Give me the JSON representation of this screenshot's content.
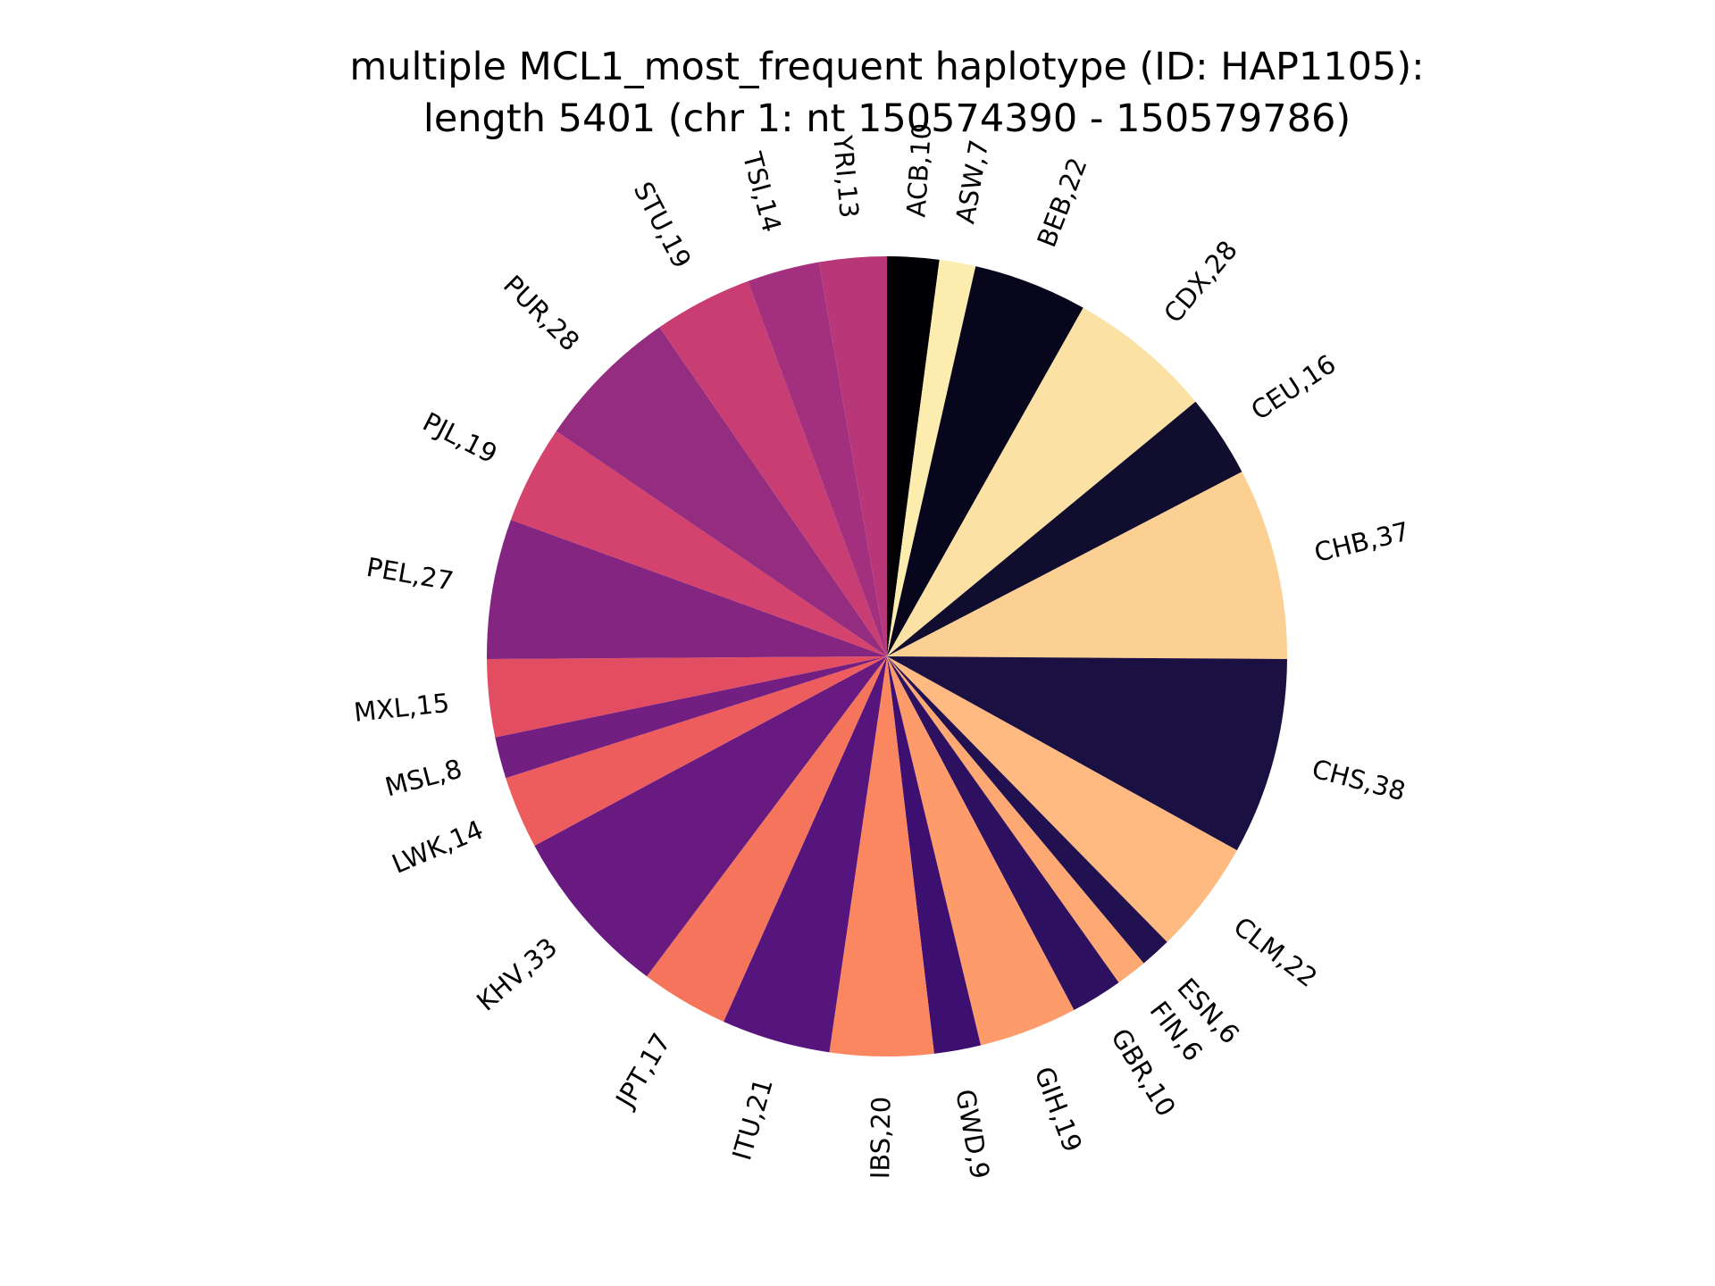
{
  "chart_data": {
    "type": "pie",
    "title": "multiple MCL1_most_frequent haplotype (ID: HAP1105):",
    "subtitle": "length 5401 (chr 1: nt 150574390 - 150579786)",
    "start_angle_deg": 90,
    "direction": "clockwise",
    "slices": [
      {
        "label": "ACB,10",
        "category": "ACB",
        "value": 10,
        "color": "#000004"
      },
      {
        "label": "ASW,7",
        "category": "ASW",
        "value": 7,
        "color": "#fcecad"
      },
      {
        "label": "BEB,22",
        "category": "BEB",
        "value": 22,
        "color": "#07061c"
      },
      {
        "label": "CDX,28",
        "category": "CDX",
        "value": 28,
        "color": "#fce1a4"
      },
      {
        "label": "CEU,16",
        "category": "CEU",
        "value": 16,
        "color": "#110d2e"
      },
      {
        "label": "CHB,37",
        "category": "CHB",
        "value": 37,
        "color": "#fbd092"
      },
      {
        "label": "CHS,38",
        "category": "CHS",
        "value": 38,
        "color": "#1b1042"
      },
      {
        "label": "CLM,22",
        "category": "CLM",
        "value": 22,
        "color": "#feba80"
      },
      {
        "label": "ESN,6",
        "category": "ESN",
        "value": 6,
        "color": "#221150"
      },
      {
        "label": "FIN,6",
        "category": "FIN",
        "value": 6,
        "color": "#fea873"
      },
      {
        "label": "GBR,10",
        "category": "GBR",
        "value": 10,
        "color": "#2d1160"
      },
      {
        "label": "GIH,19",
        "category": "GIH",
        "value": 19,
        "color": "#fd9b6b"
      },
      {
        "label": "GWD,9",
        "category": "GWD",
        "value": 9,
        "color": "#3c0f70"
      },
      {
        "label": "IBS,20",
        "category": "IBS",
        "value": 20,
        "color": "#fb8761"
      },
      {
        "label": "ITU,21",
        "category": "ITU",
        "value": 21,
        "color": "#56147d"
      },
      {
        "label": "JPT,17",
        "category": "JPT",
        "value": 17,
        "color": "#f4755c"
      },
      {
        "label": "KHV,33",
        "category": "KHV",
        "value": 33,
        "color": "#681a80"
      },
      {
        "label": "LWK,14",
        "category": "LWK",
        "value": 14,
        "color": "#ee5d5d"
      },
      {
        "label": "MSL,8",
        "category": "MSL",
        "value": 8,
        "color": "#721f81"
      },
      {
        "label": "MXL,15",
        "category": "MXL",
        "value": 15,
        "color": "#e24d61"
      },
      {
        "label": "PEL,27",
        "category": "PEL",
        "value": 27,
        "color": "#842681"
      },
      {
        "label": "PJL,19",
        "category": "PJL",
        "value": 19,
        "color": "#d3436e"
      },
      {
        "label": "PUR,28",
        "category": "PUR",
        "value": 28,
        "color": "#942c80"
      },
      {
        "label": "STU,19",
        "category": "STU",
        "value": 19,
        "color": "#c83e73"
      },
      {
        "label": "TSI,14",
        "category": "TSI",
        "value": 14,
        "color": "#a3307e"
      },
      {
        "label": "YRI,13",
        "category": "YRI",
        "value": 13,
        "color": "#b73779"
      }
    ]
  }
}
